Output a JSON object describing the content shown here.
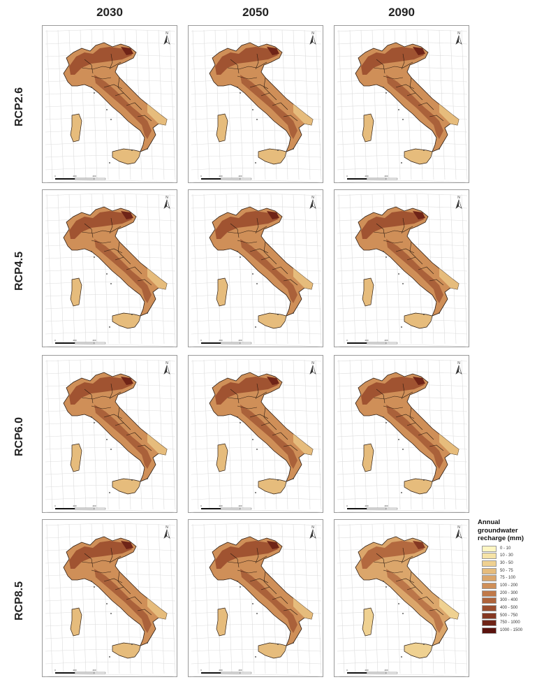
{
  "columns": [
    "2030",
    "2050",
    "2090"
  ],
  "rows": [
    "RCP2.6",
    "RCP4.5",
    "RCP6.0",
    "RCP8.5"
  ],
  "north_label": "N",
  "scale_bar_labels": [
    "0",
    "200",
    "400"
  ],
  "legend": {
    "title_lines": [
      "Annual",
      "groundwater",
      "recharge (mm)"
    ],
    "classes": [
      {
        "label": "0 - 10",
        "color": "#fff6c2"
      },
      {
        "label": "10 - 30",
        "color": "#f6e3a6"
      },
      {
        "label": "30 - 50",
        "color": "#efd191"
      },
      {
        "label": "50 - 75",
        "color": "#e6bc7c"
      },
      {
        "label": "75 - 100",
        "color": "#dba66b"
      },
      {
        "label": "100 - 200",
        "color": "#cf8f58"
      },
      {
        "label": "200 - 300",
        "color": "#c07949"
      },
      {
        "label": "300 - 400",
        "color": "#ae633b"
      },
      {
        "label": "400 - 500",
        "color": "#9a4d2e"
      },
      {
        "label": "500 - 750",
        "color": "#853822"
      },
      {
        "label": "750 - 1000",
        "color": "#6f2417"
      },
      {
        "label": "1000 - 1500",
        "color": "#5a120d"
      }
    ]
  },
  "panel_fill_levels": [
    [
      5,
      5,
      5
    ],
    [
      5,
      5,
      5
    ],
    [
      5,
      5,
      5
    ],
    [
      5,
      5,
      4
    ]
  ]
}
